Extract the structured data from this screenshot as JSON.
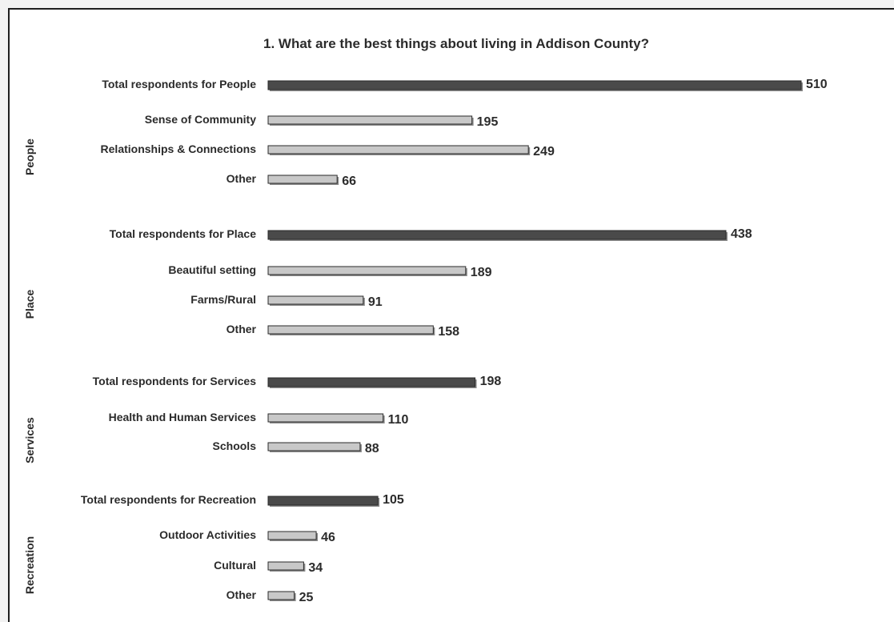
{
  "chart_data": {
    "type": "bar",
    "orientation": "horizontal",
    "title": "1. What are the best things about living in Addison County?",
    "xlim": [
      0,
      510
    ],
    "grid": false,
    "legend": "none",
    "colors": {
      "total": "#4a4a4a",
      "item": "#c8c8c8",
      "outline": "#2a2a2a"
    },
    "groups": [
      {
        "name": "People",
        "bars": [
          {
            "label": "Total respondents for People",
            "value": 510,
            "kind": "total"
          },
          {
            "label": "Sense of Community",
            "value": 195,
            "kind": "item"
          },
          {
            "label": "Relationships & Connections",
            "value": 249,
            "kind": "item"
          },
          {
            "label": "Other",
            "value": 66,
            "kind": "item"
          }
        ]
      },
      {
        "name": "Place",
        "bars": [
          {
            "label": "Total respondents for Place",
            "value": 438,
            "kind": "total"
          },
          {
            "label": "Beautiful setting",
            "value": 189,
            "kind": "item"
          },
          {
            "label": "Farms/Rural",
            "value": 91,
            "kind": "item"
          },
          {
            "label": "Other",
            "value": 158,
            "kind": "item"
          }
        ]
      },
      {
        "name": "Services",
        "bars": [
          {
            "label": "Total respondents for Services",
            "value": 198,
            "kind": "total"
          },
          {
            "label": "Health and Human Services",
            "value": 110,
            "kind": "item"
          },
          {
            "label": "Schools",
            "value": 88,
            "kind": "item"
          }
        ]
      },
      {
        "name": "Recreation",
        "bars": [
          {
            "label": "Total respondents for Recreation",
            "value": 105,
            "kind": "total"
          },
          {
            "label": "Outdoor Activities",
            "value": 46,
            "kind": "item"
          },
          {
            "label": "Cultural",
            "value": 34,
            "kind": "item"
          },
          {
            "label": "Other",
            "value": 25,
            "kind": "item"
          }
        ]
      }
    ]
  }
}
